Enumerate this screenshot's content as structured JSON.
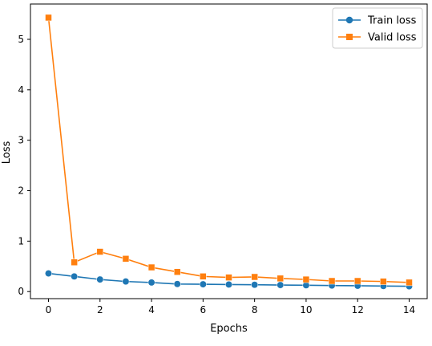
{
  "chart_data": {
    "type": "line",
    "title": "",
    "xlabel": "Epochs",
    "ylabel": "Loss",
    "x": [
      0,
      1,
      2,
      3,
      4,
      5,
      6,
      7,
      8,
      9,
      10,
      11,
      12,
      13,
      14
    ],
    "xlim": [
      -0.7,
      14.7
    ],
    "ylim": [
      -0.14,
      5.7
    ],
    "xticks": [
      0,
      2,
      4,
      6,
      8,
      10,
      12,
      14
    ],
    "yticks": [
      0,
      1,
      2,
      3,
      4,
      5
    ],
    "grid": false,
    "legend_position": "top-right",
    "series": [
      {
        "name": "Train loss",
        "marker": "circle",
        "color": "#1f77b4",
        "values": [
          0.36,
          0.3,
          0.24,
          0.2,
          0.18,
          0.15,
          0.145,
          0.14,
          0.135,
          0.13,
          0.125,
          0.12,
          0.115,
          0.11,
          0.105
        ]
      },
      {
        "name": "Valid loss",
        "marker": "square",
        "color": "#ff7f0e",
        "values": [
          5.43,
          0.58,
          0.79,
          0.65,
          0.48,
          0.39,
          0.3,
          0.28,
          0.29,
          0.26,
          0.24,
          0.21,
          0.21,
          0.2,
          0.18
        ]
      }
    ]
  }
}
